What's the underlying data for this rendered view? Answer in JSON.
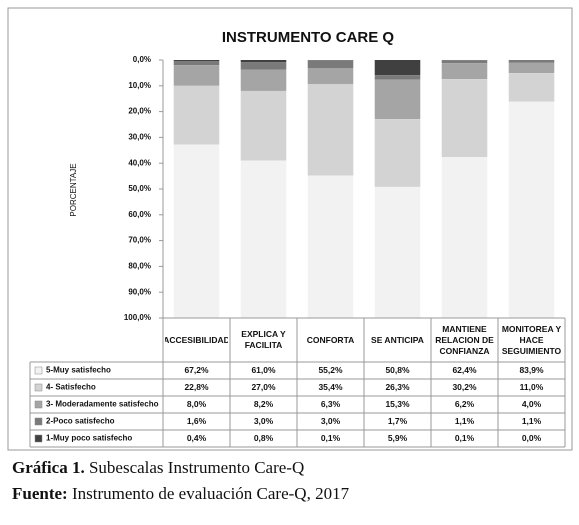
{
  "chart_data": {
    "type": "stacked-bar",
    "title": "INSTRUMENTO CARE Q",
    "y_label": "PORCENTAJE",
    "categories": [
      "ACCESIBILIDAD",
      "EXPLICA Y FACILITA",
      "CONFORTA",
      "SE ANTICIPA",
      "MANTIENE RELACION DE CONFIANZA",
      "MONITOREA Y HACE SEGUIMIENTO"
    ],
    "series": [
      {
        "name": "5-Muy satisfecho",
        "color": "#f2f2f2",
        "values": [
          67.2,
          61.0,
          55.2,
          50.8,
          62.4,
          83.9
        ],
        "value_labels": [
          "67,2%",
          "61,0%",
          "55,2%",
          "50,8%",
          "62,4%",
          "83,9%"
        ]
      },
      {
        "name": "4- Satisfecho",
        "color": "#d3d3d3",
        "values": [
          22.8,
          27.0,
          35.4,
          26.3,
          30.2,
          11.0
        ],
        "value_labels": [
          "22,8%",
          "27,0%",
          "35,4%",
          "26,3%",
          "30,2%",
          "11,0%"
        ]
      },
      {
        "name": "3- Moderadamente satisfecho",
        "color": "#a5a5a5",
        "values": [
          8.0,
          8.2,
          6.3,
          15.3,
          6.2,
          4.0
        ],
        "value_labels": [
          "8,0%",
          "8,2%",
          "6,3%",
          "15,3%",
          "6,2%",
          "4,0%"
        ]
      },
      {
        "name": "2-Poco satisfecho",
        "color": "#7a7a7a",
        "values": [
          1.6,
          3.0,
          3.0,
          1.7,
          1.1,
          1.1
        ],
        "value_labels": [
          "1,6%",
          "3,0%",
          "3,0%",
          "1,7%",
          "1,1%",
          "1,1%"
        ]
      },
      {
        "name": "1-Muy poco satisfecho",
        "color": "#404040",
        "values": [
          0.4,
          0.8,
          0.1,
          5.9,
          0.1,
          0.0
        ],
        "value_labels": [
          "0,4%",
          "0,8%",
          "0,1%",
          "5,9%",
          "0,1%",
          "0,0%"
        ]
      }
    ],
    "ylim": [
      0,
      100
    ],
    "y_inverted": true,
    "yticks": [
      {
        "value": 0,
        "label": "0,0%"
      },
      {
        "value": 10,
        "label": "10,0%"
      },
      {
        "value": 20,
        "label": "20,0%"
      },
      {
        "value": 30,
        "label": "30,0%"
      },
      {
        "value": 40,
        "label": "40,0%"
      },
      {
        "value": 50,
        "label": "50,0%"
      },
      {
        "value": 60,
        "label": "60,0%"
      },
      {
        "value": 70,
        "label": "70,0%"
      },
      {
        "value": 80,
        "label": "80,0%"
      },
      {
        "value": 90,
        "label": "90,0%"
      },
      {
        "value": 100,
        "label": "100,0%"
      }
    ],
    "grid": false
  },
  "caption": {
    "label": "Gráfica 1.",
    "text": "Subescalas Instrumento Care-Q"
  },
  "source": {
    "label": "Fuente:",
    "text": "Instrumento de evaluación Care-Q, 2017"
  }
}
